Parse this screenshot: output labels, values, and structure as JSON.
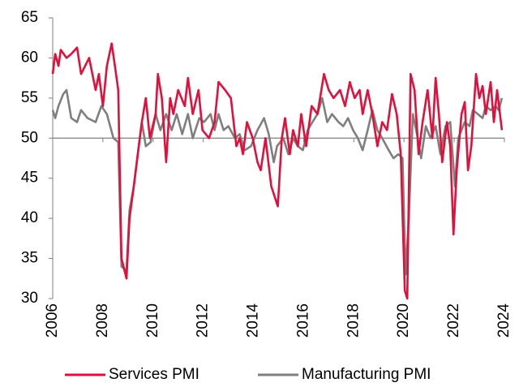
{
  "chart_data": {
    "type": "line",
    "xlim": [
      2006,
      2024
    ],
    "xticks": [
      2006,
      2008,
      2010,
      2012,
      2014,
      2016,
      2018,
      2020,
      2022,
      2024
    ],
    "ylim": [
      30,
      65
    ],
    "yticks": [
      30,
      35,
      40,
      45,
      50,
      55,
      60,
      65
    ],
    "hline": 50,
    "legend": "bottom",
    "series": [
      {
        "name": "Services PMI",
        "color": "#e0103c",
        "x": [
          2006.0,
          2006.1,
          2006.23,
          2006.32,
          2006.55,
          2006.74,
          2006.97,
          2007.13,
          2007.45,
          2007.71,
          2007.84,
          2008.0,
          2008.16,
          2008.35,
          2008.48,
          2008.61,
          2008.74,
          2008.94,
          2009.06,
          2009.23,
          2009.39,
          2009.55,
          2009.71,
          2009.87,
          2010.1,
          2010.19,
          2010.35,
          2010.52,
          2010.68,
          2010.81,
          2011.0,
          2011.26,
          2011.39,
          2011.58,
          2011.81,
          2011.97,
          2012.23,
          2012.45,
          2012.61,
          2012.87,
          2013.1,
          2013.32,
          2013.45,
          2013.58,
          2013.74,
          2013.97,
          2014.16,
          2014.29,
          2014.48,
          2014.71,
          2014.97,
          2015.13,
          2015.26,
          2015.45,
          2015.58,
          2015.77,
          2015.9,
          2016.1,
          2016.32,
          2016.55,
          2016.81,
          2017.0,
          2017.19,
          2017.45,
          2017.65,
          2017.84,
          2018.03,
          2018.23,
          2018.35,
          2018.55,
          2018.74,
          2018.94,
          2019.13,
          2019.32,
          2019.52,
          2019.71,
          2019.87,
          2020.03,
          2020.13,
          2020.26,
          2020.42,
          2020.58,
          2020.74,
          2020.94,
          2021.13,
          2021.26,
          2021.39,
          2021.52,
          2021.71,
          2021.84,
          2021.97,
          2022.1,
          2022.29,
          2022.42,
          2022.55,
          2022.68,
          2022.87,
          2023.0,
          2023.13,
          2023.26,
          2023.45,
          2023.58,
          2023.71,
          2023.9
        ],
        "values": [
          58,
          60.5,
          59,
          61,
          60,
          60.5,
          61.3,
          58,
          60,
          56,
          58,
          54,
          59,
          61.8,
          59,
          56,
          35,
          32.5,
          40,
          44,
          48,
          52,
          55,
          50,
          53,
          58,
          55,
          47,
          55,
          53,
          56,
          54,
          57.5,
          53,
          56,
          51,
          50,
          52,
          57,
          56,
          55,
          49,
          50,
          48,
          52,
          50,
          47,
          46,
          50,
          44,
          41.5,
          50,
          52.5,
          48,
          51,
          49,
          53,
          49,
          54,
          53,
          58,
          56,
          55,
          56,
          54,
          57,
          55,
          56,
          53,
          56,
          53,
          49,
          52,
          51,
          55.5,
          53,
          48,
          31,
          30,
          58,
          56,
          48,
          52,
          56,
          50,
          57.5,
          53,
          47,
          52,
          49,
          38,
          46,
          53,
          54.5,
          46,
          49,
          58,
          55,
          56.5,
          53,
          57,
          52,
          56,
          51
        ]
      },
      {
        "name": "Manufacturing PMI",
        "color": "#7f7f7f",
        "x": [
          2006.0,
          2006.1,
          2006.23,
          2006.42,
          2006.55,
          2006.74,
          2006.97,
          2007.13,
          2007.39,
          2007.71,
          2007.94,
          2008.16,
          2008.42,
          2008.61,
          2008.74,
          2008.94,
          2009.06,
          2009.23,
          2009.39,
          2009.55,
          2009.71,
          2009.9,
          2010.1,
          2010.29,
          2010.52,
          2010.74,
          2010.94,
          2011.16,
          2011.39,
          2011.58,
          2011.84,
          2012.03,
          2012.29,
          2012.45,
          2012.61,
          2012.81,
          2013.0,
          2013.26,
          2013.45,
          2013.65,
          2013.9,
          2014.16,
          2014.42,
          2014.61,
          2014.81,
          2014.94,
          2015.19,
          2015.39,
          2015.58,
          2015.77,
          2015.97,
          2016.16,
          2016.35,
          2016.55,
          2016.74,
          2016.94,
          2017.13,
          2017.39,
          2017.58,
          2017.77,
          2017.97,
          2018.16,
          2018.35,
          2018.55,
          2018.74,
          2018.94,
          2019.13,
          2019.39,
          2019.58,
          2019.77,
          2019.94,
          2020.06,
          2020.19,
          2020.35,
          2020.55,
          2020.68,
          2020.87,
          2021.06,
          2021.26,
          2021.45,
          2021.65,
          2021.84,
          2022.03,
          2022.16,
          2022.29,
          2022.42,
          2022.61,
          2022.74,
          2022.94,
          2023.13,
          2023.26,
          2023.45,
          2023.65,
          2023.77,
          2023.9
        ],
        "values": [
          53.5,
          52.5,
          54,
          55.5,
          56,
          52.5,
          52,
          53.5,
          52.5,
          52,
          54,
          53,
          50,
          49.5,
          34,
          33.5,
          41,
          44,
          48,
          52,
          49,
          49.5,
          53,
          51,
          53,
          51,
          53,
          50.5,
          53,
          50,
          52.5,
          52,
          53,
          51,
          53,
          51,
          51.5,
          50,
          50.5,
          48.5,
          49,
          51,
          52.5,
          50.5,
          47,
          49,
          50,
          48,
          50,
          49,
          48.5,
          51,
          52,
          53,
          55,
          52,
          53,
          52,
          51.5,
          52.5,
          51,
          50,
          48.5,
          51,
          53.5,
          51,
          50,
          48.5,
          47.5,
          48,
          47.5,
          33,
          40,
          53,
          50,
          47.5,
          51.5,
          50,
          51.5,
          48,
          51.5,
          52,
          44,
          50,
          51,
          52,
          51.5,
          53.5,
          53,
          52.5,
          54,
          53.5,
          54,
          53.5,
          55
        ]
      }
    ]
  }
}
